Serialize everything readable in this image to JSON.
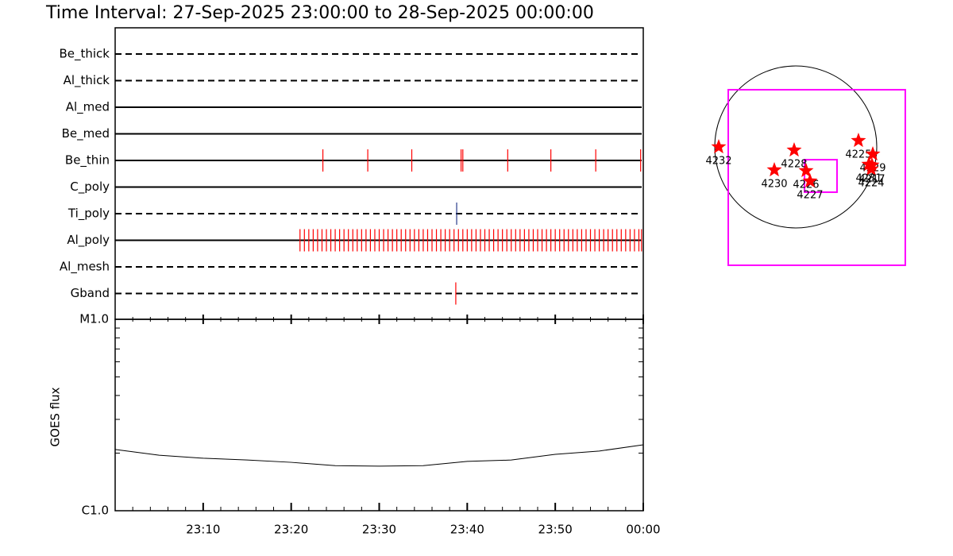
{
  "title": "Time Interval: 27-Sep-2025 23:00:00 to 28-Sep-2025 00:00:00",
  "timeline": {
    "xlim": [
      0,
      60
    ],
    "filters": [
      {
        "name": "Be_thick",
        "dashed": true,
        "color": "#ff0000",
        "events": []
      },
      {
        "name": "Al_thick",
        "dashed": true,
        "color": "#ff0000",
        "events": []
      },
      {
        "name": "Al_med",
        "dashed": false,
        "color": "#ff0000",
        "events": []
      },
      {
        "name": "Be_med",
        "dashed": false,
        "color": "#ff0000",
        "events": []
      },
      {
        "name": "Be_thin",
        "dashed": false,
        "color": "#ff0000",
        "events": [
          23.6,
          28.7,
          33.7,
          39.3,
          39.5,
          44.6,
          49.5,
          54.6,
          59.7
        ]
      },
      {
        "name": "C_poly",
        "dashed": false,
        "color": "#ff0000",
        "events": []
      },
      {
        "name": "Ti_poly",
        "dashed": true,
        "color": "#283c8c",
        "events": [
          38.8
        ]
      },
      {
        "name": "Al_poly",
        "dashed": false,
        "color": "#ff0000",
        "events": [
          21.0,
          21.5,
          22.0,
          22.5,
          23.0,
          23.5,
          24.0,
          24.5,
          25.0,
          25.5,
          26.0,
          26.5,
          27.0,
          27.5,
          28.0,
          28.5,
          29.0,
          29.5,
          30.0,
          30.5,
          31.0,
          31.5,
          32.0,
          32.5,
          33.0,
          33.5,
          34.0,
          34.5,
          35.0,
          35.5,
          36.0,
          36.5,
          37.0,
          37.5,
          38.0,
          38.5,
          39.0,
          39.5,
          40.0,
          40.5,
          41.0,
          41.5,
          42.0,
          42.5,
          43.0,
          43.5,
          44.0,
          44.5,
          45.0,
          45.5,
          46.0,
          46.5,
          47.0,
          47.5,
          48.0,
          48.5,
          49.0,
          49.5,
          50.0,
          50.5,
          51.0,
          51.5,
          52.0,
          52.5,
          53.0,
          53.5,
          54.0,
          54.5,
          55.0,
          55.5,
          56.0,
          56.5,
          57.0,
          57.5,
          58.0,
          58.5,
          59.0,
          59.5,
          59.8
        ]
      },
      {
        "name": "Al_mesh",
        "dashed": true,
        "color": "#ff0000",
        "events": []
      },
      {
        "name": "Gband",
        "dashed": true,
        "color": "#ff0000",
        "events": [
          38.7
        ]
      }
    ]
  },
  "goes": {
    "ylabel": "GOES flux",
    "log": true,
    "ylim": [
      1e-06,
      1e-05
    ],
    "yticks": [
      {
        "value": 1e-05,
        "label": "M1.0"
      },
      {
        "value": 1e-06,
        "label": "C1.0"
      }
    ],
    "y_minor_ticks": [
      2e-06,
      3e-06,
      4e-06,
      5e-06,
      6e-06,
      7e-06,
      8e-06,
      9e-06
    ],
    "xticks": [
      {
        "value": 10,
        "label": "23:10"
      },
      {
        "value": 20,
        "label": "23:20"
      },
      {
        "value": 30,
        "label": "23:30"
      },
      {
        "value": 40,
        "label": "23:40"
      },
      {
        "value": 50,
        "label": "23:50"
      },
      {
        "value": 60,
        "label": "00:00"
      }
    ],
    "x_minor_ticks": [
      2,
      4,
      6,
      8,
      12,
      14,
      16,
      18,
      22,
      24,
      26,
      28,
      32,
      34,
      36,
      38,
      42,
      44,
      46,
      48,
      52,
      54,
      56,
      58
    ],
    "x": [
      0,
      5,
      10,
      15,
      20,
      25,
      30,
      35,
      40,
      45,
      50,
      55,
      60
    ],
    "values": [
      2.09e-06,
      1.95e-06,
      1.88e-06,
      1.84e-06,
      1.79e-06,
      1.72e-06,
      1.71e-06,
      1.72e-06,
      1.81e-06,
      1.84e-06,
      1.97e-06,
      2.05e-06,
      2.21e-06
    ],
    "color": "#000000"
  },
  "map": {
    "sun_radius": 960,
    "fov_box": [
      -800,
      -1402,
      1298,
      678
    ],
    "target_box": [
      104,
      -536,
      489,
      -151
    ],
    "box_color": "#ff00ff",
    "star_color": "#ff0000",
    "regions": [
      {
        "label": "4232",
        "x": -913,
        "y": 0
      },
      {
        "label": "4228",
        "x": -19,
        "y": -38
      },
      {
        "label": "4230",
        "x": -254,
        "y": -273
      },
      {
        "label": "4226",
        "x": 122,
        "y": -282
      },
      {
        "label": "4227",
        "x": 169,
        "y": -405
      },
      {
        "label": "4225",
        "x": 743,
        "y": 75
      },
      {
        "label": "4229",
        "x": 913,
        "y": -85
      },
      {
        "label": "4231",
        "x": 866,
        "y": -207
      },
      {
        "label": "4224",
        "x": 894,
        "y": -263
      },
      {
        "label": "4217",
        "x": 903,
        "y": -216
      }
    ]
  }
}
